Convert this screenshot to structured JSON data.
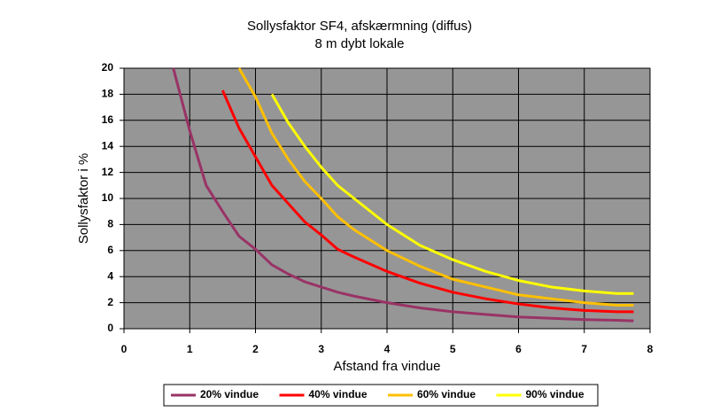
{
  "chart_data": {
    "type": "line",
    "title": "Sollysfaktor SF4, afskærmning (diffus)",
    "subtitle": "8 m dybt lokale",
    "x_label": "Afstand fra vindue",
    "y_label": "Sollysfaktor i %",
    "x": [
      0.75,
      1,
      1.25,
      1.5,
      1.75,
      2,
      2.25,
      2.5,
      2.75,
      3,
      3.25,
      3.5,
      4,
      4.5,
      5,
      5.5,
      6,
      6.5,
      7,
      7.5,
      7.75
    ],
    "series": [
      {
        "name": "20% vindue",
        "color": "#993366",
        "values": [
          20,
          15.2,
          11,
          9,
          7.1,
          6.1,
          4.9,
          4.2,
          3.6,
          3.2,
          2.8,
          2.5,
          2.0,
          1.6,
          1.3,
          1.1,
          0.9,
          0.8,
          0.7,
          0.65,
          0.6
        ]
      },
      {
        "name": "40% vindue",
        "color": "#ff0000",
        "values": [
          null,
          null,
          null,
          18.3,
          15.4,
          13.2,
          11,
          9.6,
          8.2,
          7.2,
          6.1,
          5.5,
          4.4,
          3.5,
          2.8,
          2.3,
          1.9,
          1.6,
          1.4,
          1.3,
          1.3
        ]
      },
      {
        "name": "60% vindue",
        "color": "#ffc000",
        "values": [
          null,
          null,
          null,
          null,
          20,
          17.8,
          15,
          13,
          11.3,
          10,
          8.6,
          7.6,
          6.0,
          4.8,
          3.8,
          3.2,
          2.6,
          2.3,
          2.0,
          1.8,
          1.8
        ]
      },
      {
        "name": "90% vindue",
        "color": "#ffff00",
        "values": [
          null,
          null,
          null,
          null,
          null,
          null,
          18,
          15.8,
          14,
          12.4,
          11,
          10,
          8.0,
          6.4,
          5.3,
          4.4,
          3.7,
          3.2,
          2.9,
          2.7,
          2.7
        ]
      }
    ],
    "xlim": [
      0,
      8
    ],
    "xticks": [
      0,
      1,
      2,
      3,
      4,
      5,
      6,
      7,
      8
    ],
    "ylim": [
      0,
      20
    ],
    "yticks": [
      0,
      2,
      4,
      6,
      8,
      10,
      12,
      14,
      16,
      18,
      20
    ],
    "grid": true,
    "legend": "bottom"
  }
}
